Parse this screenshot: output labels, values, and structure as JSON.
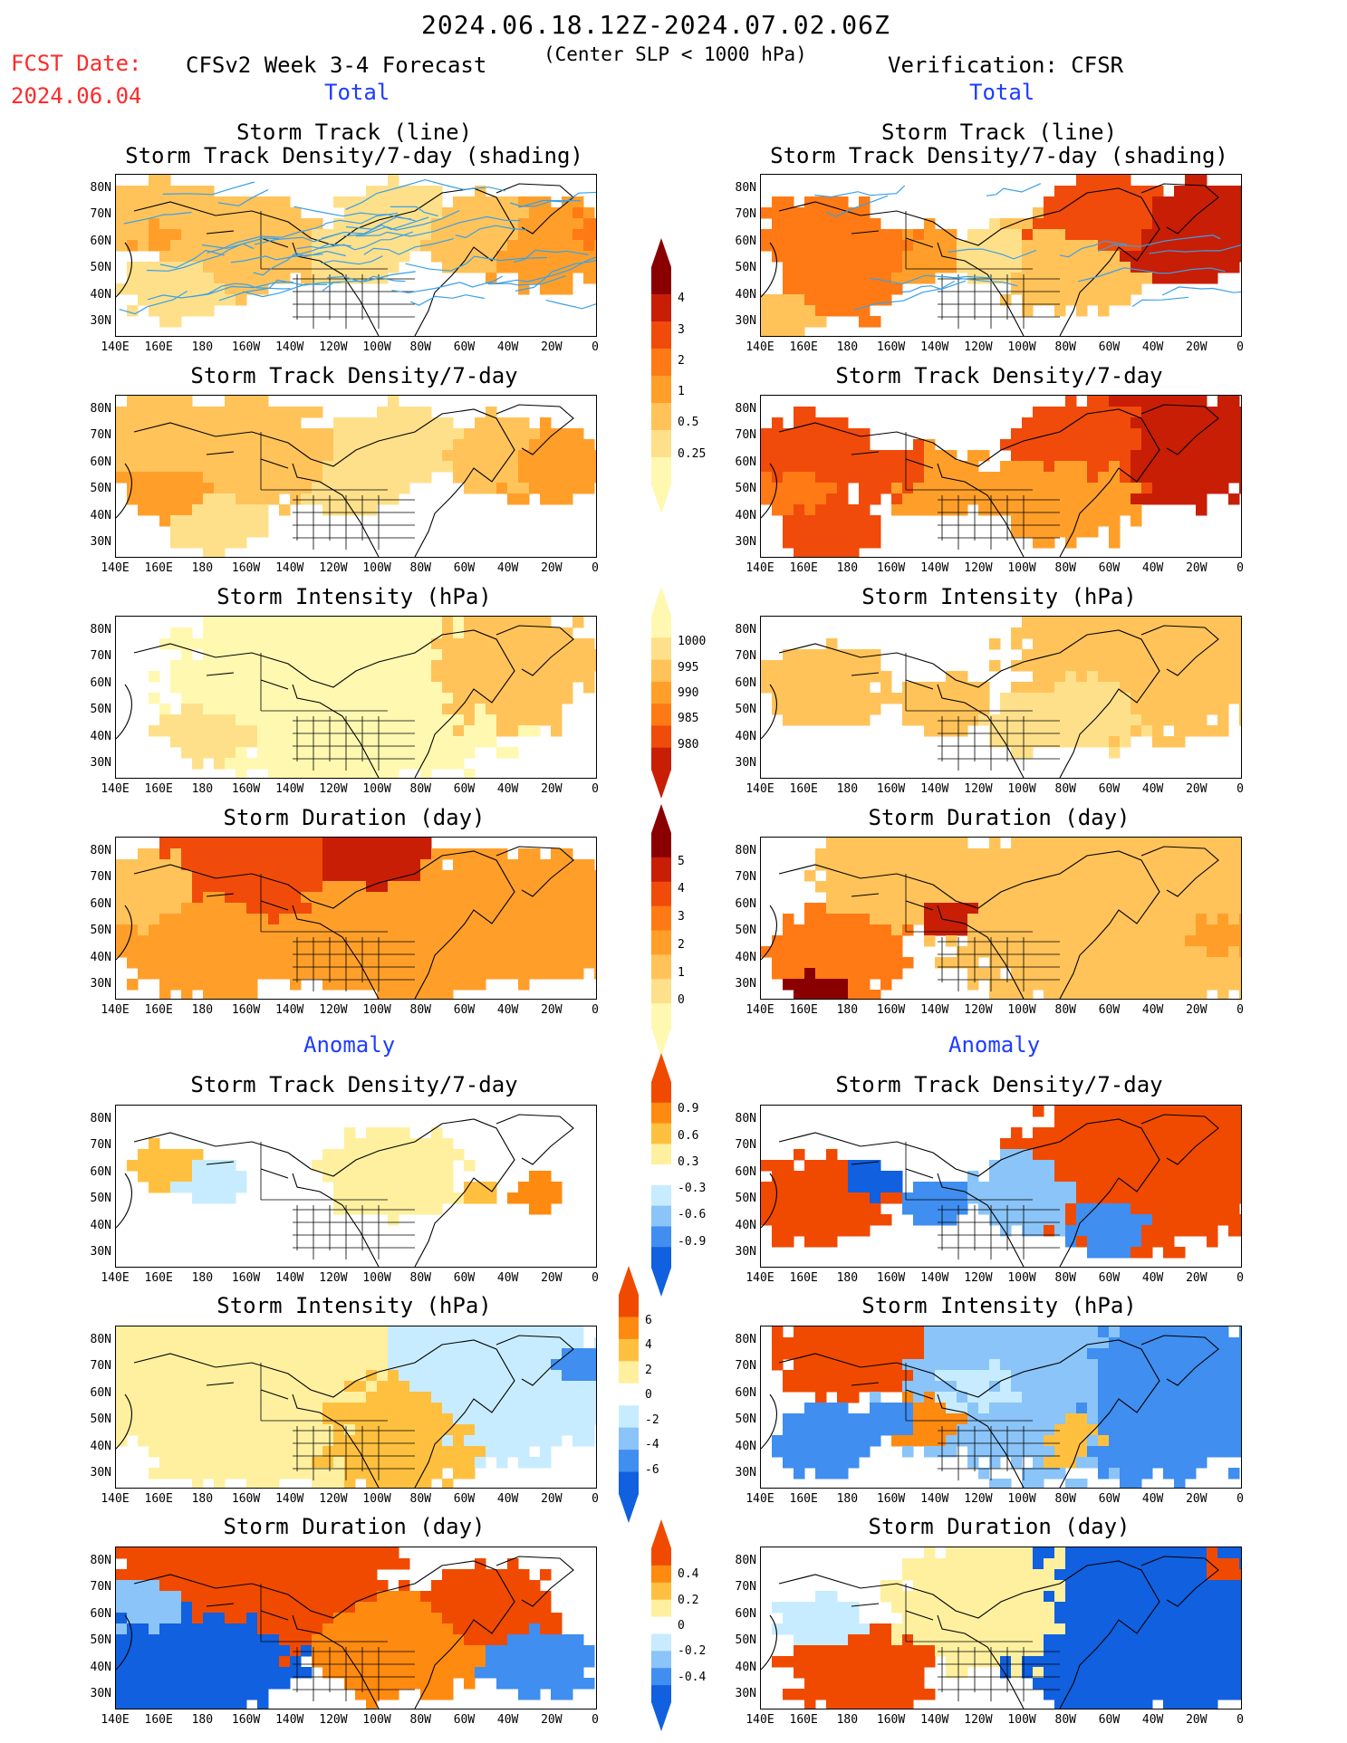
{
  "header": {
    "date_range": "2024.06.18.12Z-2024.07.02.06Z",
    "fcst_label": "FCST Date:",
    "fcst_date": "2024.06.04",
    "left_title": "CFSv2 Week 3-4 Forecast",
    "center_note": "(Center SLP < 1000 hPa)",
    "right_title": "Verification: CFSR",
    "section_total": "Total",
    "section_anomaly": "Anomaly"
  },
  "panel_titles": {
    "track_line": "Storm Track (line)",
    "track_density_shading": "Storm Track Density/7-day (shading)",
    "track_density": "Storm Track Density/7-day",
    "intensity": "Storm Intensity (hPa)",
    "duration": "Storm Duration (day)"
  },
  "axes": {
    "lat_labels": [
      "80N",
      "70N",
      "60N",
      "50N",
      "40N",
      "30N"
    ],
    "lon_labels": [
      "140E",
      "160E",
      "180",
      "160W",
      "140W",
      "120W",
      "100W",
      "80W",
      "60W",
      "40W",
      "20W",
      "0"
    ]
  },
  "colorbars": {
    "density_total": [
      "4",
      "3",
      "2",
      "1",
      "0.5",
      "0.25"
    ],
    "intensity_total": [
      "1000",
      "995",
      "990",
      "985",
      "980"
    ],
    "duration_total": [
      "5",
      "4",
      "3",
      "2",
      "1",
      "0"
    ],
    "density_anom": [
      "0.9",
      "0.6",
      "0.3",
      "-0.3",
      "-0.6",
      "-0.9"
    ],
    "intensity_anom": [
      "6",
      "4",
      "2",
      "0",
      "-2",
      "-4",
      "-6"
    ],
    "duration_anom": [
      "0.4",
      "0.2",
      "0",
      "-0.2",
      "-0.4"
    ]
  },
  "colors": {
    "total_scale": [
      "#fff8b0",
      "#ffe08a",
      "#ffc35a",
      "#ff9f2a",
      "#ff7a14",
      "#f04b0a",
      "#c81e05",
      "#8a0000"
    ],
    "anom_scale": [
      "#1060e0",
      "#3f8ef0",
      "#8ac4f8",
      "#c8ecff",
      "#ffffff",
      "#fff0a0",
      "#ffc040",
      "#ff8a10",
      "#f04a00"
    ],
    "track_line": "#3aa0e8",
    "header_red": "#ff2a2a",
    "header_blue": "#1e3cff"
  }
}
